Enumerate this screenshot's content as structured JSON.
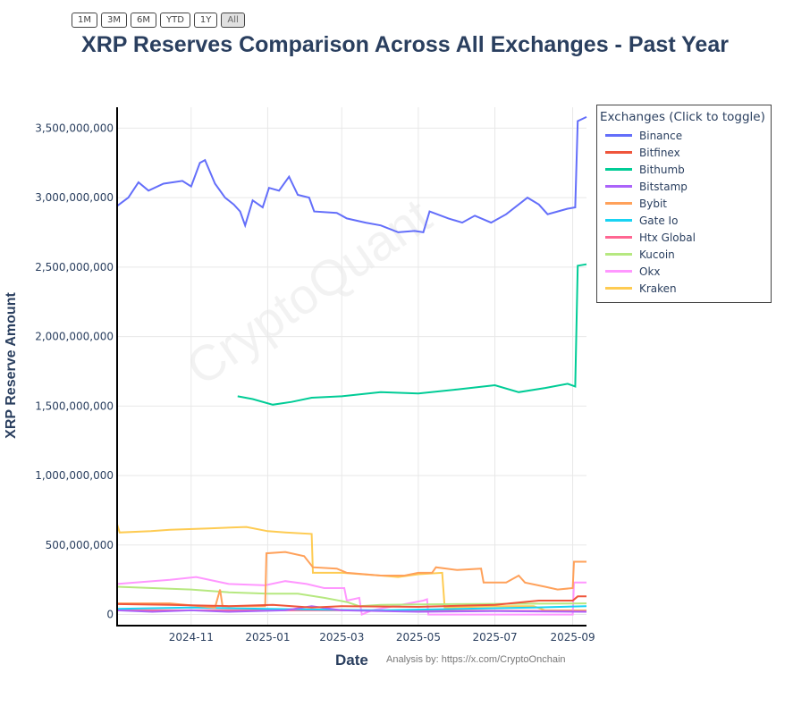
{
  "range_buttons": [
    {
      "label": "1M"
    },
    {
      "label": "3M"
    },
    {
      "label": "6M"
    },
    {
      "label": "YTD"
    },
    {
      "label": "1Y"
    },
    {
      "label": "All",
      "active": true
    }
  ],
  "watermark": "CryptoQuant",
  "credit": "Analysis by: https://x.com/CryptoOnchain",
  "chart_data": {
    "type": "line",
    "title": "XRP Reserves Comparison Across All Exchanges - Past Year",
    "xlabel": "Date",
    "ylabel": "XRP Reserve Amount",
    "xlim": [
      "2024-09-03",
      "2025-09-12"
    ],
    "ylim": [
      -80000000,
      3650000000
    ],
    "x_ticks": [
      "2024-11",
      "2025-01",
      "2025-03",
      "2025-05",
      "2025-07",
      "2025-09"
    ],
    "y_ticks": [
      0,
      500000000,
      1000000000,
      1500000000,
      2000000000,
      2500000000,
      3000000000,
      3500000000
    ],
    "y_tick_labels": [
      "0",
      "500,000,000",
      "1,000,000,000",
      "1,500,000,000",
      "2,000,000,000",
      "2,500,000,000",
      "3,000,000,000",
      "3,500,000,000"
    ],
    "grid": true,
    "legend_title": "Exchanges (Click to toggle)",
    "legend_position": "top-right",
    "series": [
      {
        "name": "Binance",
        "color": "#636efa",
        "points": [
          [
            "2024-09-03",
            2940000000.0
          ],
          [
            "2024-09-12",
            3000000000.0
          ],
          [
            "2024-09-20",
            3110000000.0
          ],
          [
            "2024-09-28",
            3050000000.0
          ],
          [
            "2024-10-10",
            3100000000.0
          ],
          [
            "2024-10-25",
            3120000000.0
          ],
          [
            "2024-11-01",
            3080000000.0
          ],
          [
            "2024-11-08",
            3250000000.0
          ],
          [
            "2024-11-12",
            3270000000.0
          ],
          [
            "2024-11-20",
            3100000000.0
          ],
          [
            "2024-11-28",
            3000000000.0
          ],
          [
            "2024-12-05",
            2950000000.0
          ],
          [
            "2024-12-10",
            2900000000.0
          ],
          [
            "2024-12-14",
            2800000000.0
          ],
          [
            "2024-12-20",
            2980000000.0
          ],
          [
            "2024-12-28",
            2930000000.0
          ],
          [
            "2025-01-02",
            3070000000.0
          ],
          [
            "2025-01-10",
            3050000000.0
          ],
          [
            "2025-01-18",
            3150000000.0
          ],
          [
            "2025-01-25",
            3020000000.0
          ],
          [
            "2025-02-03",
            3000000000.0
          ],
          [
            "2025-02-07",
            2900000000.0
          ],
          [
            "2025-02-25",
            2890000000.0
          ],
          [
            "2025-03-05",
            2850000000.0
          ],
          [
            "2025-03-20",
            2820000000.0
          ],
          [
            "2025-04-01",
            2800000000.0
          ],
          [
            "2025-04-15",
            2750000000.0
          ],
          [
            "2025-04-28",
            2760000000.0
          ],
          [
            "2025-05-05",
            2750000000.0
          ],
          [
            "2025-05-10",
            2900000000.0
          ],
          [
            "2025-05-25",
            2850000000.0
          ],
          [
            "2025-06-05",
            2820000000.0
          ],
          [
            "2025-06-15",
            2870000000.0
          ],
          [
            "2025-06-28",
            2820000000.0
          ],
          [
            "2025-07-10",
            2880000000.0
          ],
          [
            "2025-07-27",
            3000000000.0
          ],
          [
            "2025-08-05",
            2950000000.0
          ],
          [
            "2025-08-12",
            2880000000.0
          ],
          [
            "2025-08-20",
            2900000000.0
          ],
          [
            "2025-08-28",
            2920000000.0
          ],
          [
            "2025-09-03",
            2930000000.0
          ],
          [
            "2025-09-05",
            3550000000.0
          ],
          [
            "2025-09-12",
            3580000000.0
          ]
        ]
      },
      {
        "name": "Bitfinex",
        "color": "#EF553B",
        "points": [
          [
            "2024-09-03",
            75000000.0
          ],
          [
            "2024-10-15",
            70000000.0
          ],
          [
            "2024-12-01",
            60000000.0
          ],
          [
            "2025-01-05",
            70000000.0
          ],
          [
            "2025-02-05",
            50000000.0
          ],
          [
            "2025-03-01",
            60000000.0
          ],
          [
            "2025-05-01",
            55000000.0
          ],
          [
            "2025-07-01",
            70000000.0
          ],
          [
            "2025-08-05",
            100000000.0
          ],
          [
            "2025-09-01",
            100000000.0
          ],
          [
            "2025-09-05",
            130000000.0
          ],
          [
            "2025-09-12",
            130000000.0
          ]
        ]
      },
      {
        "name": "Bithumb",
        "color": "#00cc96",
        "points": [
          [
            "2024-12-08",
            1570000000.0
          ],
          [
            "2024-12-20",
            1550000000.0
          ],
          [
            "2025-01-05",
            1510000000.0
          ],
          [
            "2025-01-20",
            1530000000.0
          ],
          [
            "2025-02-05",
            1560000000.0
          ],
          [
            "2025-03-01",
            1570000000.0
          ],
          [
            "2025-04-01",
            1600000000.0
          ],
          [
            "2025-05-01",
            1590000000.0
          ],
          [
            "2025-06-01",
            1620000000.0
          ],
          [
            "2025-07-01",
            1650000000.0
          ],
          [
            "2025-07-20",
            1600000000.0
          ],
          [
            "2025-08-10",
            1630000000.0
          ],
          [
            "2025-08-28",
            1660000000.0
          ],
          [
            "2025-09-03",
            1640000000.0
          ],
          [
            "2025-09-05",
            2510000000.0
          ],
          [
            "2025-09-12",
            2520000000.0
          ]
        ]
      },
      {
        "name": "Bitstamp",
        "color": "#ab63fa",
        "points": [
          [
            "2024-09-03",
            30000000.0
          ],
          [
            "2024-10-01",
            20000000.0
          ],
          [
            "2024-11-01",
            30000000.0
          ],
          [
            "2024-12-01",
            20000000.0
          ],
          [
            "2025-01-15",
            30000000.0
          ],
          [
            "2025-02-05",
            60000000.0
          ],
          [
            "2025-03-01",
            30000000.0
          ],
          [
            "2025-05-01",
            20000000.0
          ],
          [
            "2025-07-01",
            25000000.0
          ],
          [
            "2025-09-12",
            20000000.0
          ]
        ]
      },
      {
        "name": "Bybit",
        "color": "#FFA15A",
        "points": [
          [
            "2024-09-03",
            80000000.0
          ],
          [
            "2024-10-15",
            80000000.0
          ],
          [
            "2024-11-20",
            50000000.0
          ],
          [
            "2024-11-24",
            180000000.0
          ],
          [
            "2024-11-26",
            60000000.0
          ],
          [
            "2024-12-30",
            60000000.0
          ],
          [
            "2024-12-31",
            440000000.0
          ],
          [
            "2025-01-15",
            450000000.0
          ],
          [
            "2025-01-30",
            420000000.0
          ],
          [
            "2025-02-06",
            340000000.0
          ],
          [
            "2025-02-25",
            330000000.0
          ],
          [
            "2025-03-05",
            300000000.0
          ],
          [
            "2025-04-01",
            280000000.0
          ],
          [
            "2025-04-20",
            280000000.0
          ],
          [
            "2025-05-01",
            300000000.0
          ],
          [
            "2025-05-12",
            300000000.0
          ],
          [
            "2025-05-15",
            340000000.0
          ],
          [
            "2025-06-01",
            320000000.0
          ],
          [
            "2025-06-20",
            330000000.0
          ],
          [
            "2025-06-22",
            230000000.0
          ],
          [
            "2025-07-10",
            230000000.0
          ],
          [
            "2025-07-20",
            280000000.0
          ],
          [
            "2025-07-25",
            230000000.0
          ],
          [
            "2025-08-10",
            200000000.0
          ],
          [
            "2025-08-20",
            180000000.0
          ],
          [
            "2025-09-01",
            190000000.0
          ],
          [
            "2025-09-02",
            380000000.0
          ],
          [
            "2025-09-12",
            380000000.0
          ]
        ]
      },
      {
        "name": "Gate Io",
        "color": "#19d3f3",
        "points": [
          [
            "2024-09-03",
            40000000.0
          ],
          [
            "2024-11-01",
            50000000.0
          ],
          [
            "2025-01-01",
            40000000.0
          ],
          [
            "2025-04-01",
            30000000.0
          ],
          [
            "2025-08-01",
            50000000.0
          ],
          [
            "2025-09-12",
            60000000.0
          ]
        ]
      },
      {
        "name": "Htx Global",
        "color": "#FF6692",
        "points": [
          [
            "2024-09-03",
            30000000.0
          ],
          [
            "2025-03-01",
            30000000.0
          ],
          [
            "2025-09-12",
            25000000.0
          ]
        ]
      },
      {
        "name": "Kucoin",
        "color": "#B6E880",
        "points": [
          [
            "2024-09-03",
            200000000.0
          ],
          [
            "2024-11-01",
            180000000.0
          ],
          [
            "2024-12-01",
            160000000.0
          ],
          [
            "2025-01-01",
            150000000.0
          ],
          [
            "2025-01-25",
            150000000.0
          ],
          [
            "2025-02-15",
            120000000.0
          ],
          [
            "2025-03-05",
            90000000.0
          ],
          [
            "2025-03-15",
            60000000.0
          ],
          [
            "2025-04-01",
            70000000.0
          ],
          [
            "2025-06-01",
            75000000.0
          ],
          [
            "2025-09-12",
            80000000.0
          ]
        ]
      },
      {
        "name": "Okx",
        "color": "#FF97FF",
        "points": [
          [
            "2024-09-03",
            220000000.0
          ],
          [
            "2024-10-15",
            250000000.0
          ],
          [
            "2024-11-05",
            270000000.0
          ],
          [
            "2024-12-01",
            220000000.0
          ],
          [
            "2024-12-30",
            210000000.0
          ],
          [
            "2025-01-15",
            240000000.0
          ],
          [
            "2025-02-01",
            220000000.0
          ],
          [
            "2025-02-15",
            190000000.0
          ],
          [
            "2025-03-03",
            190000000.0
          ],
          [
            "2025-03-05",
            100000000.0
          ],
          [
            "2025-03-15",
            120000000.0
          ],
          [
            "2025-03-17",
            0
          ],
          [
            "2025-03-25",
            30000000.0
          ],
          [
            "2025-05-05",
            100000000.0
          ],
          [
            "2025-05-08",
            110000000.0
          ],
          [
            "2025-05-09",
            0
          ],
          [
            "2025-09-01",
            0
          ],
          [
            "2025-09-02",
            230000000.0
          ],
          [
            "2025-09-12",
            230000000.0
          ]
        ]
      },
      {
        "name": "Kraken",
        "color": "#FECB52",
        "points": [
          [
            "2024-09-03",
            650000000.0
          ],
          [
            "2024-09-05",
            590000000.0
          ],
          [
            "2024-09-30",
            600000000.0
          ],
          [
            "2024-10-15",
            610000000.0
          ],
          [
            "2024-11-15",
            620000000.0
          ],
          [
            "2024-12-15",
            630000000.0
          ],
          [
            "2025-01-01",
            600000000.0
          ],
          [
            "2025-01-15",
            590000000.0
          ],
          [
            "2025-02-05",
            580000000.0
          ],
          [
            "2025-02-06",
            300000000.0
          ],
          [
            "2025-03-01",
            300000000.0
          ],
          [
            "2025-04-01",
            280000000.0
          ],
          [
            "2025-04-15",
            270000000.0
          ],
          [
            "2025-05-01",
            290000000.0
          ],
          [
            "2025-05-20",
            300000000.0
          ],
          [
            "2025-05-22",
            50000000.0
          ],
          [
            "2025-07-01",
            60000000.0
          ],
          [
            "2025-08-01",
            60000000.0
          ],
          [
            "2025-08-10",
            30000000.0
          ],
          [
            "2025-09-12",
            30000000.0
          ]
        ]
      }
    ]
  }
}
